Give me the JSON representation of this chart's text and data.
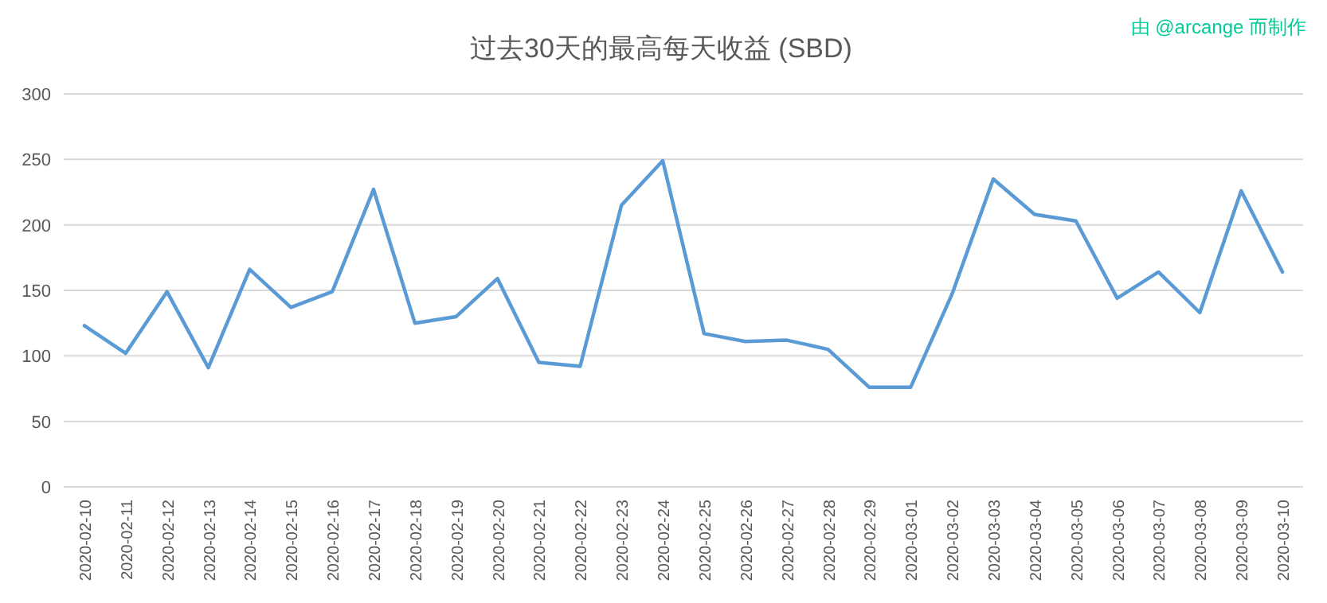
{
  "chart_data": {
    "type": "line",
    "title": "过去30天的最高每天收益 (SBD)",
    "annotations": [
      "由 @arcange 而制作"
    ],
    "categories": [
      "2020-02-10",
      "2020-02-11",
      "2020-02-12",
      "2020-02-13",
      "2020-02-14",
      "2020-02-15",
      "2020-02-16",
      "2020-02-17",
      "2020-02-18",
      "2020-02-19",
      "2020-02-20",
      "2020-02-21",
      "2020-02-22",
      "2020-02-23",
      "2020-02-24",
      "2020-02-25",
      "2020-02-26",
      "2020-02-27",
      "2020-02-28",
      "2020-02-29",
      "2020-03-01",
      "2020-03-02",
      "2020-03-03",
      "2020-03-04",
      "2020-03-05",
      "2020-03-06",
      "2020-03-07",
      "2020-03-08",
      "2020-03-09",
      "2020-03-10"
    ],
    "series": [
      {
        "color": "#5b9bd5",
        "values": [
          123,
          102,
          149,
          91,
          166,
          137,
          149,
          227,
          125,
          130,
          159,
          95,
          92,
          215,
          249,
          117,
          111,
          112,
          105,
          76,
          76,
          147,
          235,
          208,
          203,
          144,
          164,
          133,
          226,
          164
        ]
      }
    ],
    "ylim": [
      0,
      300
    ],
    "yticks": [
      0,
      50,
      100,
      150,
      200,
      250,
      300
    ],
    "grid": "y",
    "marker": "none",
    "line_style": "solid"
  }
}
